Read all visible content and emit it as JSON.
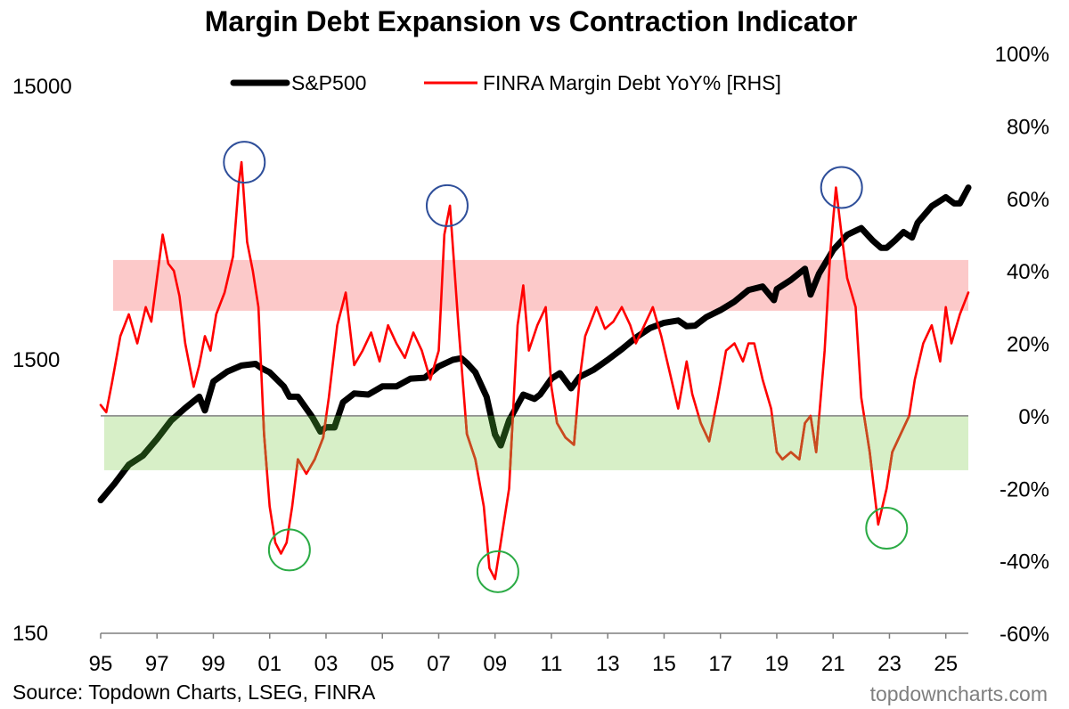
{
  "chart_data": {
    "type": "line",
    "title": "Margin Debt Expansion vs Contraction Indicator",
    "source": "Source: Topdown Charts, LSEG, FINRA",
    "watermark": "topdowncharts.com",
    "left_axis": {
      "scale": "log",
      "ticks": [
        "15000",
        "1500",
        "150"
      ],
      "ylim": [
        150,
        15000
      ]
    },
    "right_axis": {
      "scale": "linear",
      "ticks": [
        "100%",
        "80%",
        "60%",
        "40%",
        "20%",
        "0%",
        "-20%",
        "-40%",
        "-60%"
      ],
      "ylim": [
        -60,
        100
      ]
    },
    "x_ticks": [
      "95",
      "97",
      "99",
      "01",
      "03",
      "05",
      "07",
      "09",
      "11",
      "13",
      "15",
      "17",
      "19",
      "21",
      "23",
      "25"
    ],
    "x_range": [
      1995.0,
      2025.8
    ],
    "bands": [
      {
        "name": "expansion",
        "from": 29,
        "to": 43,
        "color": "#fcc9c9"
      },
      {
        "name": "contraction",
        "from": -15,
        "to": 0,
        "color": "#d7efc7"
      }
    ],
    "zero_line_color": "#808080",
    "series": [
      {
        "name": "S&P500",
        "axis": "left",
        "color": "#000000",
        "dark_color": "#1a3d10",
        "x": [
          1995.0,
          1995.5,
          1996.0,
          1996.5,
          1997.0,
          1997.5,
          1998.0,
          1998.5,
          1998.7,
          1999.0,
          1999.5,
          2000.0,
          2000.5,
          2000.7,
          2001.0,
          2001.5,
          2001.7,
          2002.0,
          2002.5,
          2002.8,
          2003.0,
          2003.3,
          2003.6,
          2004.0,
          2004.5,
          2005.0,
          2005.5,
          2006.0,
          2006.5,
          2007.0,
          2007.5,
          2007.8,
          2008.0,
          2008.3,
          2008.7,
          2009.0,
          2009.2,
          2009.5,
          2010.0,
          2010.4,
          2010.6,
          2011.0,
          2011.3,
          2011.7,
          2012.0,
          2012.5,
          2013.0,
          2013.5,
          2014.0,
          2014.5,
          2015.0,
          2015.5,
          2015.8,
          2016.1,
          2016.5,
          2017.0,
          2017.5,
          2018.0,
          2018.5,
          2018.9,
          2019.0,
          2019.5,
          2020.0,
          2020.2,
          2020.5,
          2021.0,
          2021.5,
          2022.0,
          2022.4,
          2022.7,
          2022.9,
          2023.2,
          2023.5,
          2023.8,
          2024.0,
          2024.5,
          2025.0,
          2025.3,
          2025.5,
          2025.8
        ],
        "y": [
          460,
          530,
          620,
          670,
          770,
          900,
          1000,
          1100,
          980,
          1250,
          1360,
          1430,
          1450,
          1400,
          1350,
          1200,
          1100,
          1100,
          930,
          820,
          850,
          850,
          1050,
          1130,
          1120,
          1200,
          1200,
          1280,
          1290,
          1420,
          1500,
          1520,
          1460,
          1350,
          1100,
          800,
          730,
          900,
          1120,
          1080,
          1120,
          1280,
          1340,
          1180,
          1300,
          1380,
          1500,
          1640,
          1810,
          1960,
          2050,
          2090,
          1990,
          2000,
          2150,
          2280,
          2450,
          2700,
          2780,
          2480,
          2720,
          2940,
          3230,
          2600,
          3100,
          3780,
          4300,
          4550,
          4100,
          3850,
          3850,
          4100,
          4400,
          4200,
          4760,
          5470,
          5900,
          5600,
          5600,
          6400
        ]
      },
      {
        "name": "FINRA Margin Debt YoY% [RHS]",
        "axis": "right",
        "color": "#ff0000",
        "dark_color": "#c84b1f",
        "x": [
          1995.0,
          1995.2,
          1995.4,
          1995.7,
          1996.0,
          1996.3,
          1996.6,
          1996.8,
          1997.0,
          1997.2,
          1997.4,
          1997.6,
          1997.8,
          1998.0,
          1998.3,
          1998.5,
          1998.7,
          1998.9,
          1999.1,
          1999.4,
          1999.7,
          1999.9,
          2000.0,
          2000.2,
          2000.4,
          2000.6,
          2000.8,
          2001.0,
          2001.2,
          2001.4,
          2001.6,
          2001.8,
          2002.0,
          2002.3,
          2002.6,
          2002.9,
          2003.1,
          2003.4,
          2003.7,
          2004.0,
          2004.3,
          2004.6,
          2004.9,
          2005.2,
          2005.5,
          2005.8,
          2006.1,
          2006.4,
          2006.7,
          2007.0,
          2007.2,
          2007.4,
          2007.7,
          2008.0,
          2008.3,
          2008.6,
          2008.8,
          2009.0,
          2009.2,
          2009.5,
          2009.8,
          2010.0,
          2010.2,
          2010.5,
          2010.8,
          2011.0,
          2011.2,
          2011.5,
          2011.8,
          2012.0,
          2012.2,
          2012.6,
          2012.9,
          2013.2,
          2013.5,
          2013.8,
          2014.0,
          2014.3,
          2014.6,
          2014.9,
          2015.2,
          2015.5,
          2015.8,
          2016.0,
          2016.3,
          2016.6,
          2016.9,
          2017.2,
          2017.5,
          2017.8,
          2018.0,
          2018.2,
          2018.5,
          2018.8,
          2019.0,
          2019.2,
          2019.5,
          2019.8,
          2020.0,
          2020.2,
          2020.4,
          2020.7,
          2020.9,
          2021.1,
          2021.3,
          2021.5,
          2021.8,
          2022.0,
          2022.3,
          2022.6,
          2022.9,
          2023.1,
          2023.4,
          2023.7,
          2023.9,
          2024.2,
          2024.5,
          2024.8,
          2025.0,
          2025.2,
          2025.5,
          2025.8
        ],
        "y": [
          3,
          1,
          9,
          22,
          28,
          20,
          30,
          26,
          38,
          50,
          42,
          40,
          33,
          20,
          8,
          14,
          22,
          18,
          28,
          34,
          44,
          64,
          70,
          48,
          40,
          30,
          -5,
          -25,
          -35,
          -38,
          -35,
          -25,
          -12,
          -16,
          -12,
          -6,
          5,
          25,
          34,
          14,
          18,
          23,
          15,
          25,
          20,
          16,
          23,
          18,
          10,
          18,
          50,
          58,
          25,
          -5,
          -12,
          -25,
          -42,
          -45,
          -35,
          -20,
          25,
          36,
          18,
          25,
          30,
          8,
          -2,
          -6,
          -8,
          10,
          22,
          30,
          24,
          26,
          30,
          25,
          20,
          25,
          30,
          22,
          12,
          2,
          15,
          6,
          -2,
          -7,
          5,
          18,
          20,
          15,
          20,
          20,
          10,
          2,
          -10,
          -12,
          -10,
          -12,
          -2,
          0,
          -10,
          18,
          45,
          63,
          50,
          38,
          30,
          5,
          -10,
          -30,
          -20,
          -10,
          -5,
          0,
          10,
          20,
          25,
          15,
          30,
          20,
          28,
          34
        ]
      }
    ],
    "highlights": [
      {
        "kind": "peak",
        "x": 2000.1,
        "y": 70,
        "color": "#2f4f9a"
      },
      {
        "kind": "peak",
        "x": 2007.3,
        "y": 58,
        "color": "#2f4f9a"
      },
      {
        "kind": "peak",
        "x": 2021.3,
        "y": 63,
        "color": "#2f4f9a"
      },
      {
        "kind": "trough",
        "x": 2001.7,
        "y": -37,
        "color": "#2bab45"
      },
      {
        "kind": "trough",
        "x": 2009.1,
        "y": -43,
        "color": "#2bab45"
      },
      {
        "kind": "trough",
        "x": 2022.9,
        "y": -31,
        "color": "#2bab45"
      }
    ]
  }
}
